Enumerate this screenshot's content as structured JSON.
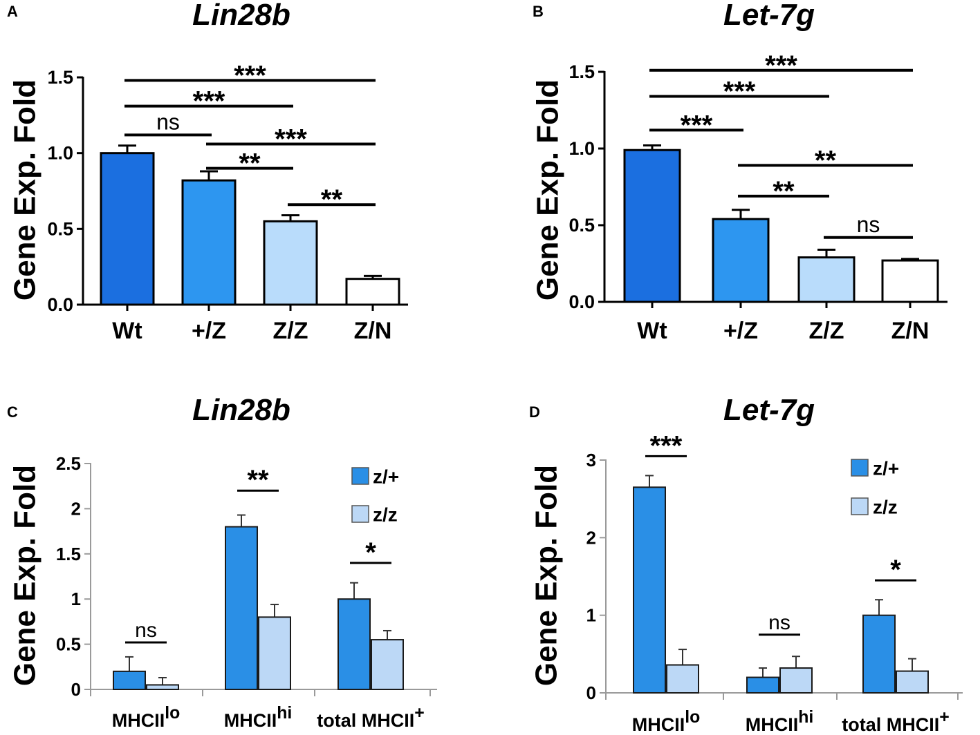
{
  "colors": {
    "wt": "#1b6fe0",
    "het": "#2d96f0",
    "zz": "#b9dcfb",
    "zn": "#ffffff",
    "legend_zp": "#2a8fe6",
    "legend_zz": "#bcd8f6",
    "line": "#000000",
    "axis_light": "#9a9a9a"
  },
  "chart_data": [
    {
      "panel": "A",
      "type": "bar",
      "title": "Lin28b",
      "ylabel": "Gene Exp. Fold",
      "xlabel": "",
      "categories": [
        "Wt",
        "+/Z",
        "Z/Z",
        "Z/N"
      ],
      "values": [
        1.0,
        0.82,
        0.55,
        0.17
      ],
      "errors": [
        0.05,
        0.06,
        0.04,
        0.02
      ],
      "ylim": [
        0,
        1.5
      ],
      "yticks": [
        "0.0",
        "0.5",
        "1.0",
        "1.5"
      ],
      "significance": [
        {
          "from": 0,
          "to": 3,
          "label": "***",
          "y": 1.48
        },
        {
          "from": 0,
          "to": 2,
          "label": "***",
          "y": 1.31
        },
        {
          "from": 0,
          "to": 1,
          "label": "ns",
          "y": 1.12
        },
        {
          "from": 1,
          "to": 3,
          "label": "***",
          "y": 1.06
        },
        {
          "from": 1,
          "to": 2,
          "label": "**",
          "y": 0.9
        },
        {
          "from": 2,
          "to": 3,
          "label": "**",
          "y": 0.66
        }
      ]
    },
    {
      "panel": "B",
      "type": "bar",
      "title": "Let-7g",
      "ylabel": "Gene Exp. Fold",
      "xlabel": "",
      "categories": [
        "Wt",
        "+/Z",
        "Z/Z",
        "Z/N"
      ],
      "values": [
        0.99,
        0.54,
        0.29,
        0.27
      ],
      "errors": [
        0.03,
        0.06,
        0.05,
        0.01
      ],
      "ylim": [
        0,
        1.5
      ],
      "yticks": [
        "0.0",
        "0.5",
        "1.0",
        "1.5"
      ],
      "significance": [
        {
          "from": 0,
          "to": 3,
          "label": "***",
          "y": 1.51
        },
        {
          "from": 0,
          "to": 2,
          "label": "***",
          "y": 1.34
        },
        {
          "from": 0,
          "to": 1,
          "label": "***",
          "y": 1.12
        },
        {
          "from": 1,
          "to": 3,
          "label": "**",
          "y": 0.89
        },
        {
          "from": 1,
          "to": 2,
          "label": "**",
          "y": 0.69
        },
        {
          "from": 2,
          "to": 3,
          "label": "ns",
          "y": 0.42
        }
      ]
    },
    {
      "panel": "C",
      "type": "bar",
      "title": "Lin28b",
      "ylabel": "Gene Exp. Fold",
      "categories": [
        {
          "base": "MHCII",
          "sup": "lo"
        },
        {
          "base": "MHCII",
          "sup": "hi"
        },
        {
          "base": "total MHCII",
          "sup": "+"
        }
      ],
      "series": [
        {
          "name": "z/+",
          "values": [
            0.2,
            1.8,
            1.0
          ],
          "errors": [
            0.16,
            0.13,
            0.18
          ]
        },
        {
          "name": "z/z",
          "values": [
            0.05,
            0.8,
            0.55
          ],
          "errors": [
            0.08,
            0.14,
            0.1
          ]
        }
      ],
      "ylim": [
        0,
        2.5
      ],
      "yticks": [
        "0",
        "0.5",
        "1",
        "1.5",
        "2",
        "2.5"
      ],
      "significance": [
        {
          "group": 0,
          "label": "ns",
          "y": 0.52
        },
        {
          "group": 1,
          "label": "**",
          "y": 2.2
        },
        {
          "group": 2,
          "label": "*",
          "y": 1.4
        }
      ],
      "legend": "top-right"
    },
    {
      "panel": "D",
      "type": "bar",
      "title": "Let-7g",
      "ylabel": "Gene Exp. Fold",
      "categories": [
        {
          "base": "MHCII",
          "sup": "lo"
        },
        {
          "base": "MHCII",
          "sup": "hi"
        },
        {
          "base": "total MHCII",
          "sup": "+"
        }
      ],
      "series": [
        {
          "name": "z/+",
          "values": [
            2.65,
            0.2,
            1.0
          ],
          "errors": [
            0.15,
            0.12,
            0.2
          ]
        },
        {
          "name": "z/z",
          "values": [
            0.36,
            0.32,
            0.28
          ],
          "errors": [
            0.2,
            0.15,
            0.16
          ]
        }
      ],
      "ylim": [
        0,
        3
      ],
      "yticks": [
        "0",
        "1",
        "2",
        "3"
      ],
      "significance": [
        {
          "group": 0,
          "label": "***",
          "y": 3.05
        },
        {
          "group": 1,
          "label": "ns",
          "y": 0.75
        },
        {
          "group": 2,
          "label": "*",
          "y": 1.45
        }
      ],
      "legend": "top-right"
    }
  ]
}
